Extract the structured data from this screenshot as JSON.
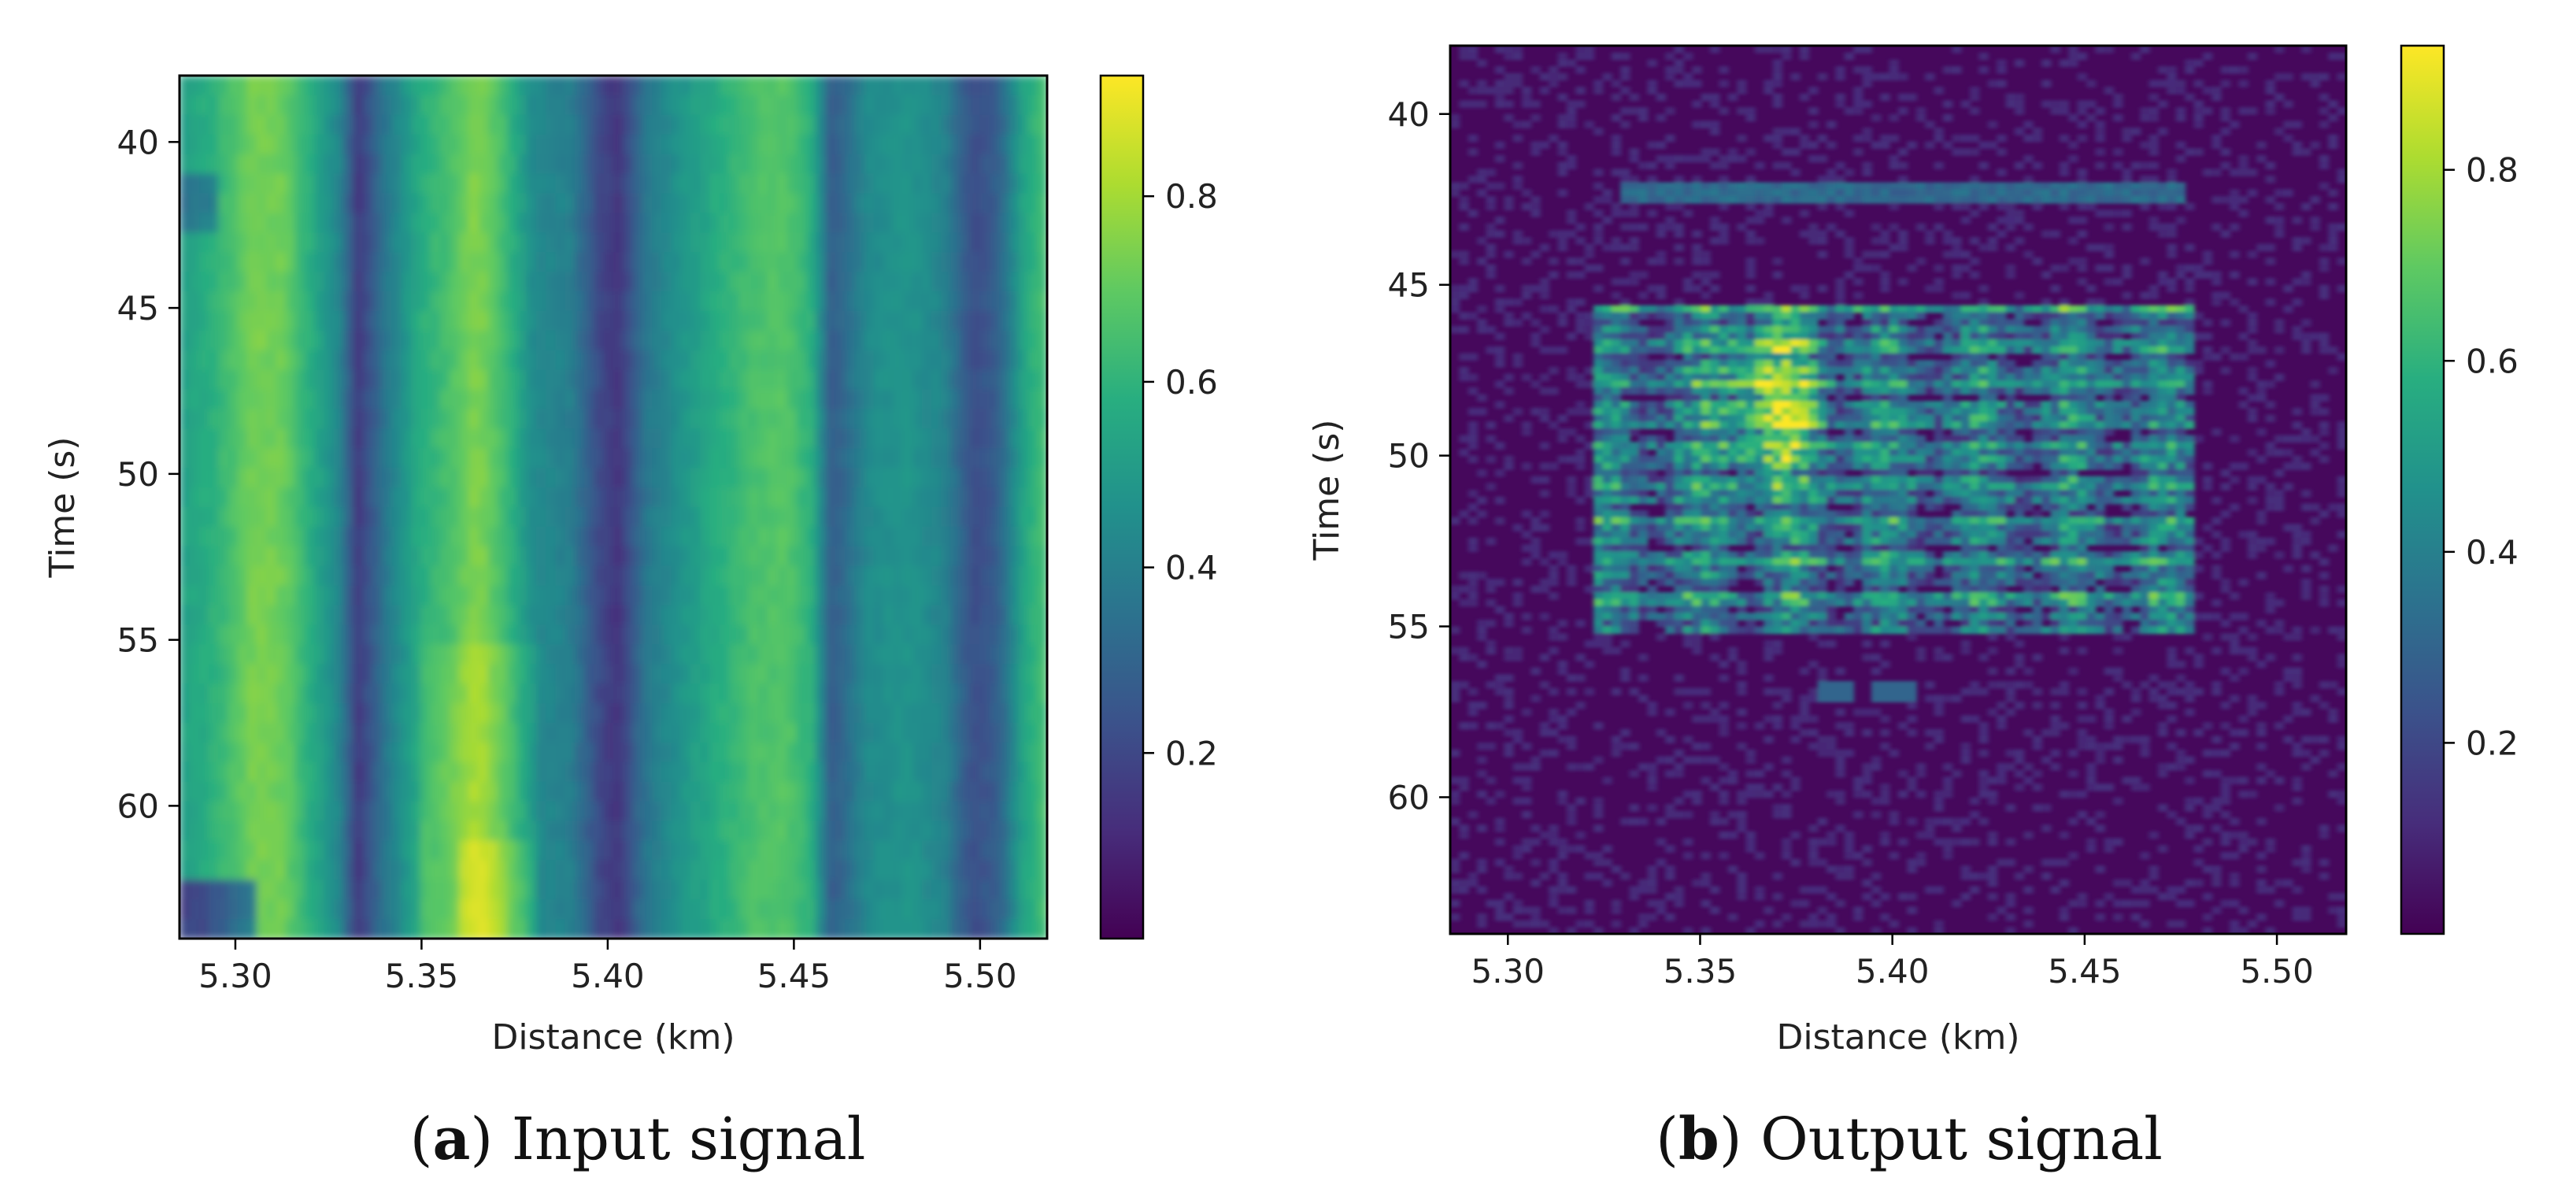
{
  "figure": {
    "captions": [
      {
        "letter": "a",
        "open": "(",
        "close": ")",
        "text": " Input signal"
      },
      {
        "letter": "b",
        "open": "(",
        "close": ")",
        "text": " Output signal"
      }
    ]
  },
  "chart_data": [
    {
      "type": "heatmap",
      "id": "input",
      "xlabel": "Distance (km)",
      "ylabel": "Time (s)",
      "xlim": [
        5.285,
        5.518
      ],
      "ylim": [
        64.0,
        38.0
      ],
      "xticks": [
        5.3,
        5.35,
        5.4,
        5.45,
        5.5
      ],
      "xtick_labels": [
        "5.30",
        "5.35",
        "5.40",
        "5.45",
        "5.50"
      ],
      "yticks": [
        40,
        45,
        50,
        55,
        60
      ],
      "ytick_labels": [
        "40",
        "45",
        "50",
        "55",
        "60"
      ],
      "colormap": "viridis",
      "clim": [
        0.0,
        0.93
      ],
      "colorbar_ticks": [
        0.2,
        0.4,
        0.6,
        0.8
      ],
      "colorbar_tick_labels": [
        "0.2",
        "0.4",
        "0.6",
        "0.8"
      ],
      "grid": false,
      "column_profile": {
        "x": [
          5.285,
          5.295,
          5.305,
          5.313,
          5.32,
          5.328,
          5.333,
          5.34,
          5.35,
          5.358,
          5.365,
          5.372,
          5.38,
          5.39,
          5.398,
          5.403,
          5.41,
          5.42,
          5.43,
          5.44,
          5.448,
          5.455,
          5.46,
          5.47,
          5.48,
          5.49,
          5.498,
          5.505,
          5.512,
          5.518
        ],
        "value": [
          0.52,
          0.6,
          0.74,
          0.72,
          0.58,
          0.42,
          0.15,
          0.36,
          0.58,
          0.66,
          0.76,
          0.64,
          0.44,
          0.4,
          0.2,
          0.14,
          0.36,
          0.48,
          0.58,
          0.66,
          0.68,
          0.58,
          0.26,
          0.44,
          0.48,
          0.42,
          0.22,
          0.28,
          0.55,
          0.66
        ]
      }
    },
    {
      "type": "heatmap",
      "id": "output",
      "xlabel": "Distance (km)",
      "ylabel": "Time (s)",
      "xlim": [
        5.285,
        5.518
      ],
      "ylim": [
        64.0,
        38.0
      ],
      "xticks": [
        5.3,
        5.35,
        5.4,
        5.45,
        5.5
      ],
      "xtick_labels": [
        "5.30",
        "5.35",
        "5.40",
        "5.45",
        "5.50"
      ],
      "yticks": [
        40,
        45,
        50,
        55,
        60
      ],
      "ytick_labels": [
        "40",
        "45",
        "50",
        "55",
        "60"
      ],
      "colormap": "viridis",
      "clim": [
        0.0,
        0.93
      ],
      "colorbar_ticks": [
        0.2,
        0.4,
        0.6,
        0.8
      ],
      "colorbar_tick_labels": [
        "0.2",
        "0.4",
        "0.6",
        "0.8"
      ],
      "grid": false,
      "background_value": 0.08,
      "active_region": {
        "x": [
          5.322,
          5.478
        ],
        "y": [
          45.5,
          55.3
        ],
        "mean_value": 0.55,
        "peak_value": 0.93,
        "peak_x": 5.368,
        "peak_y": 48.5
      },
      "horizontal_bands": [
        {
          "y": 42.3,
          "x": [
            5.33,
            5.475
          ],
          "value": 0.32
        }
      ]
    }
  ]
}
